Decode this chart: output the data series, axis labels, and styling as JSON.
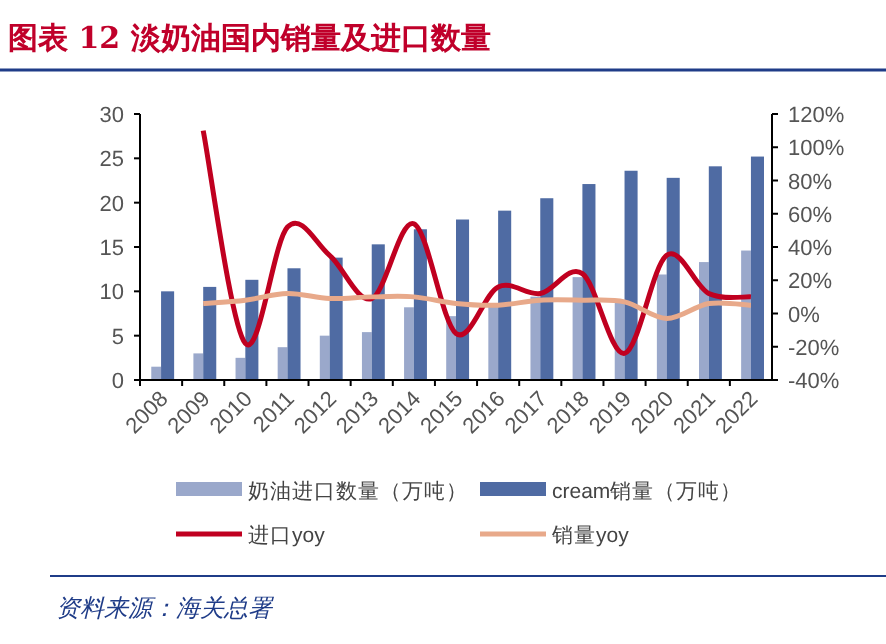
{
  "chart_data": {
    "type": "bar",
    "title": "图表 12 淡奶油国内销量及进口数量",
    "categories": [
      "2008",
      "2009",
      "2010",
      "2011",
      "2012",
      "2013",
      "2014",
      "2015",
      "2016",
      "2017",
      "2018",
      "2019",
      "2020",
      "2021",
      "2022"
    ],
    "series": [
      {
        "name": "奶油进口数量（万吨）",
        "color": "#9aa8cb",
        "values": [
          1.5,
          3.0,
          2.5,
          3.7,
          5.0,
          5.4,
          8.2,
          7.2,
          8.4,
          9.4,
          11.6,
          8.8,
          11.9,
          13.3,
          14.6
        ]
      },
      {
        "name": "cream销量（万吨）",
        "color": "#4f6ba3",
        "values": [
          10,
          10.5,
          11.3,
          12.6,
          13.8,
          15.3,
          17,
          18.1,
          19.1,
          20.5,
          22.1,
          23.6,
          22.8,
          24.1,
          25.2
        ]
      },
      {
        "name": "进口yoy",
        "type": "line",
        "axis": "y2",
        "color": "#c00020",
        "values": [
          null,
          110,
          -18,
          52,
          35,
          9,
          54,
          -12,
          16,
          12,
          24,
          -24,
          35,
          12,
          10
        ]
      },
      {
        "name": "销量yoy",
        "type": "line",
        "axis": "y2",
        "color": "#e8a98a",
        "values": [
          null,
          6,
          8,
          12,
          9,
          10,
          10,
          6,
          5,
          8,
          8,
          7,
          -3,
          6,
          5
        ]
      }
    ],
    "ylim": [
      0,
      30
    ],
    "yticks": [
      0,
      5,
      10,
      15,
      20,
      25,
      30
    ],
    "y2lim": [
      -40,
      120
    ],
    "y2ticks": [
      {
        "value": -40,
        "label": "-40%"
      },
      {
        "value": -20,
        "label": "-20%"
      },
      {
        "value": 0,
        "label": "0%"
      },
      {
        "value": 20,
        "label": "20%"
      },
      {
        "value": 40,
        "label": "40%"
      },
      {
        "value": 60,
        "label": "60%"
      },
      {
        "value": 80,
        "label": "80%"
      },
      {
        "value": 100,
        "label": "100%"
      },
      {
        "value": 120,
        "label": "120%"
      }
    ],
    "grid": false,
    "legend": "bottom",
    "marker": "none",
    "line_style": "solid",
    "annotations": [
      "资料来源：海关总署"
    ]
  }
}
